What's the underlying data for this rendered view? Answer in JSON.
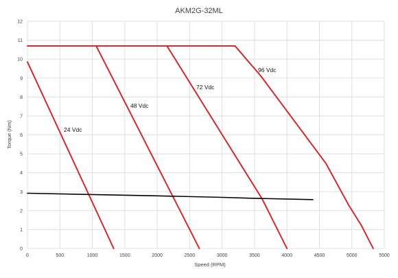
{
  "chart_data": {
    "type": "line",
    "title": "AKM2G-32ML",
    "xlabel": "Speed (RPM)",
    "ylabel": "Torque (Nm)",
    "xlim": [
      0,
      5500
    ],
    "ylim": [
      0,
      12
    ],
    "x_ticks": [
      "0",
      "500",
      "1000",
      "1500",
      "2000",
      "2500",
      "3000",
      "3500",
      "4000",
      "4500",
      "5000",
      "5500"
    ],
    "y_ticks": [
      "0",
      "1",
      "2",
      "3",
      "4",
      "5",
      "6",
      "7",
      "8",
      "9",
      "10",
      "11",
      "12"
    ],
    "grid": true,
    "legend": "none",
    "colors": {
      "voltage_curves": "#e31a1c",
      "load_line": "#000000"
    },
    "series": [
      {
        "name": "24 Vdc",
        "color": "#e31a1c",
        "points": [
          [
            0,
            9.85
          ],
          [
            1330,
            0
          ]
        ]
      },
      {
        "name": "48 Vdc",
        "color": "#e31a1c",
        "points": [
          [
            0,
            10.7
          ],
          [
            1060,
            10.7
          ],
          [
            2650,
            0
          ]
        ]
      },
      {
        "name": "72 Vdc",
        "color": "#e31a1c",
        "points": [
          [
            1060,
            10.7
          ],
          [
            2150,
            10.7
          ],
          [
            3620,
            2.6
          ],
          [
            4000,
            0
          ]
        ]
      },
      {
        "name": "96 Vdc",
        "color": "#e31a1c",
        "points": [
          [
            2150,
            10.7
          ],
          [
            3200,
            10.7
          ],
          [
            3600,
            9.1
          ],
          [
            4600,
            4.5
          ],
          [
            4950,
            2.3
          ],
          [
            5150,
            1.2
          ],
          [
            5330,
            0
          ]
        ]
      },
      {
        "name": "",
        "color": "#000000",
        "points": [
          [
            0,
            2.92
          ],
          [
            1000,
            2.85
          ],
          [
            2000,
            2.78
          ],
          [
            3000,
            2.7
          ],
          [
            3500,
            2.65
          ],
          [
            4400,
            2.58
          ]
        ]
      }
    ]
  }
}
